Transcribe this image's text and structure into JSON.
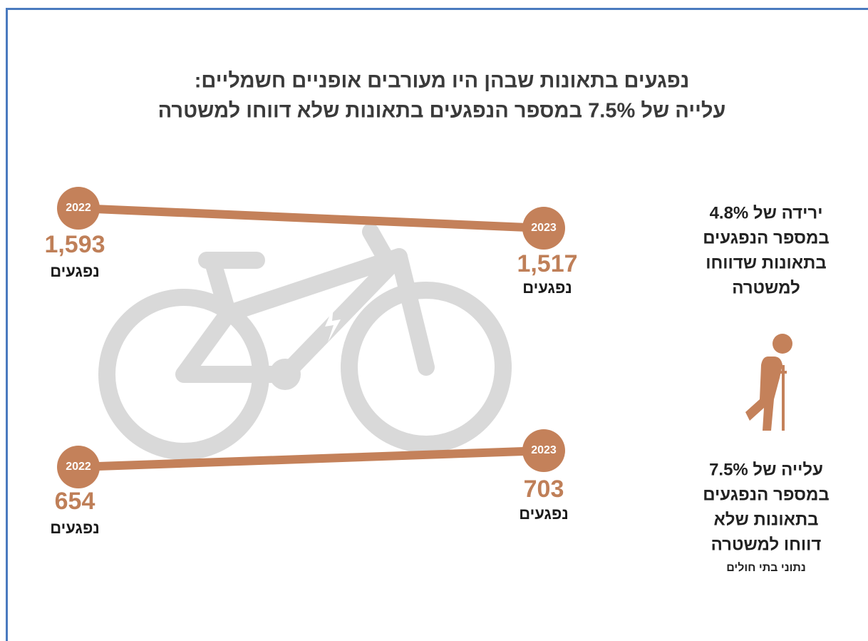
{
  "title": {
    "lines": [
      "נפגעים בתאונות שבהן היו מעורבים אופניים חשמליים:",
      "עלייה של 7.5% במספר הנפגעים בתאונות שלא דווחו למשטרה"
    ]
  },
  "panels": [
    {
      "start": {
        "year": "2022",
        "value": "1,593",
        "unit": "נפגעים"
      },
      "end": {
        "year": "2023",
        "value": "1,517",
        "unit": "נפגעים"
      }
    },
    {
      "start": {
        "year": "2022",
        "value": "654",
        "unit": "נפגעים"
      },
      "end": {
        "year": "2023",
        "value": "703",
        "unit": "נפגעים"
      }
    }
  ],
  "notes": [
    {
      "lines": [
        "ירידה של 4.8%",
        "במספר הנפגעים",
        "בתאונות שדווחו",
        "למשטרה"
      ]
    },
    {
      "lines": [
        "עלייה של 7.5%",
        "במספר הנפגעים",
        "בתאונות שלא",
        "דווחו למשטרה"
      ],
      "source": "נתוני בתי חולים"
    }
  ]
}
